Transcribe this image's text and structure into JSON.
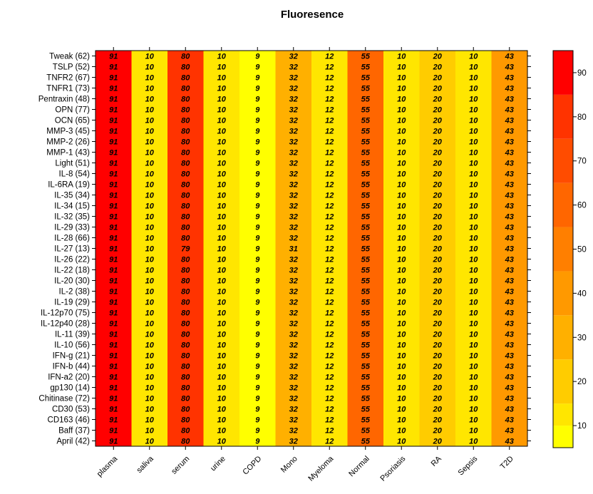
{
  "chart_data": {
    "type": "heatmap",
    "title": "Fluoresence",
    "xlabel": "",
    "ylabel": "",
    "columns": [
      "plasma",
      "saliva",
      "serum",
      "urine",
      "COPD",
      "Mono",
      "Myeloma",
      "Normal",
      "Psoriasis",
      "RA",
      "Sepsis",
      "T2D"
    ],
    "rows": [
      "Tweak (62)",
      "TSLP (52)",
      "TNFR2 (67)",
      "TNFR1 (73)",
      "Pentraxin (48)",
      "OPN (77)",
      "OCN (65)",
      "MMP-3 (45)",
      "MMP-2 (26)",
      "MMP-1 (43)",
      "Light (51)",
      "IL-8 (54)",
      "IL-6RA (19)",
      "IL-35 (34)",
      "IL-34 (15)",
      "IL-32 (35)",
      "IL-29 (33)",
      "IL-28 (66)",
      "IL-27 (13)",
      "IL-26 (22)",
      "IL-22 (18)",
      "IL-20 (30)",
      "IL-2 (38)",
      "IL-19 (29)",
      "IL-12p70 (75)",
      "IL-12p40 (28)",
      "IL-11 (39)",
      "IL-10 (56)",
      "IFN-g (21)",
      "IFN-b (44)",
      "IFN-a2 (20)",
      "gp130 (14)",
      "Chitinase (72)",
      "CD30 (53)",
      "CD163 (46)",
      "Baff (37)",
      "April (42)"
    ],
    "values": [
      [
        91,
        10,
        80,
        10,
        9,
        32,
        12,
        55,
        10,
        20,
        10,
        43
      ],
      [
        91,
        10,
        80,
        10,
        9,
        32,
        12,
        55,
        10,
        20,
        10,
        43
      ],
      [
        91,
        10,
        80,
        10,
        9,
        32,
        12,
        55,
        10,
        20,
        10,
        43
      ],
      [
        91,
        10,
        80,
        10,
        9,
        32,
        12,
        55,
        10,
        20,
        10,
        43
      ],
      [
        91,
        10,
        80,
        10,
        9,
        32,
        12,
        55,
        10,
        20,
        10,
        43
      ],
      [
        91,
        10,
        80,
        10,
        9,
        32,
        12,
        55,
        10,
        20,
        10,
        43
      ],
      [
        91,
        10,
        80,
        10,
        9,
        32,
        12,
        55,
        10,
        20,
        10,
        43
      ],
      [
        91,
        10,
        80,
        10,
        9,
        32,
        12,
        55,
        10,
        20,
        10,
        43
      ],
      [
        91,
        10,
        80,
        10,
        9,
        32,
        12,
        55,
        10,
        20,
        10,
        43
      ],
      [
        91,
        10,
        80,
        10,
        9,
        32,
        12,
        55,
        10,
        20,
        10,
        43
      ],
      [
        91,
        10,
        80,
        10,
        9,
        32,
        12,
        55,
        10,
        20,
        10,
        43
      ],
      [
        91,
        10,
        80,
        10,
        9,
        32,
        12,
        55,
        10,
        20,
        10,
        43
      ],
      [
        91,
        10,
        80,
        10,
        9,
        32,
        12,
        55,
        10,
        20,
        10,
        43
      ],
      [
        91,
        10,
        80,
        10,
        9,
        32,
        12,
        55,
        10,
        20,
        10,
        43
      ],
      [
        91,
        10,
        80,
        10,
        9,
        32,
        12,
        55,
        10,
        20,
        10,
        43
      ],
      [
        91,
        10,
        80,
        10,
        9,
        32,
        12,
        55,
        10,
        20,
        10,
        43
      ],
      [
        91,
        10,
        80,
        10,
        9,
        32,
        12,
        55,
        10,
        20,
        10,
        43
      ],
      [
        91,
        10,
        80,
        10,
        9,
        32,
        12,
        55,
        10,
        20,
        10,
        43
      ],
      [
        91,
        10,
        79,
        10,
        9,
        31,
        12,
        55,
        10,
        20,
        10,
        43
      ],
      [
        91,
        10,
        80,
        10,
        9,
        32,
        12,
        55,
        10,
        20,
        10,
        43
      ],
      [
        91,
        10,
        80,
        10,
        9,
        32,
        12,
        55,
        10,
        20,
        10,
        43
      ],
      [
        91,
        10,
        80,
        10,
        9,
        32,
        12,
        55,
        10,
        20,
        10,
        43
      ],
      [
        91,
        10,
        80,
        10,
        9,
        32,
        12,
        55,
        10,
        20,
        10,
        43
      ],
      [
        91,
        10,
        80,
        10,
        9,
        32,
        12,
        55,
        10,
        20,
        10,
        43
      ],
      [
        91,
        10,
        80,
        10,
        9,
        32,
        12,
        55,
        10,
        20,
        10,
        43
      ],
      [
        91,
        10,
        80,
        10,
        9,
        32,
        12,
        55,
        10,
        20,
        10,
        43
      ],
      [
        91,
        10,
        80,
        10,
        9,
        32,
        12,
        55,
        10,
        20,
        10,
        43
      ],
      [
        91,
        10,
        80,
        10,
        9,
        32,
        12,
        55,
        10,
        20,
        10,
        43
      ],
      [
        91,
        10,
        80,
        10,
        9,
        32,
        12,
        55,
        10,
        20,
        10,
        43
      ],
      [
        91,
        10,
        80,
        10,
        9,
        32,
        12,
        55,
        10,
        20,
        10,
        43
      ],
      [
        91,
        10,
        80,
        10,
        9,
        32,
        12,
        55,
        10,
        20,
        10,
        43
      ],
      [
        91,
        10,
        80,
        10,
        9,
        32,
        12,
        55,
        10,
        20,
        10,
        43
      ],
      [
        91,
        10,
        80,
        10,
        9,
        32,
        12,
        55,
        10,
        20,
        10,
        43
      ],
      [
        91,
        10,
        80,
        10,
        9,
        32,
        12,
        55,
        10,
        20,
        10,
        43
      ],
      [
        91,
        10,
        80,
        10,
        9,
        32,
        12,
        55,
        10,
        20,
        10,
        43
      ],
      [
        91,
        10,
        80,
        10,
        9,
        32,
        12,
        55,
        10,
        20,
        10,
        43
      ],
      [
        91,
        10,
        80,
        10,
        9,
        32,
        12,
        55,
        10,
        20,
        10,
        43
      ]
    ],
    "colorbar": {
      "range": [
        5,
        95
      ],
      "ticks": [
        10,
        20,
        30,
        40,
        50,
        60,
        70,
        80,
        90
      ],
      "bins": [
        {
          "from": 0,
          "to": 10,
          "color": "#ffff00"
        },
        {
          "from": 10,
          "to": 15,
          "color": "#ffe600"
        },
        {
          "from": 15,
          "to": 25,
          "color": "#ffcc00"
        },
        {
          "from": 25,
          "to": 35,
          "color": "#ffb000"
        },
        {
          "from": 35,
          "to": 45,
          "color": "#ff9900"
        },
        {
          "from": 45,
          "to": 55,
          "color": "#ff7f00"
        },
        {
          "from": 55,
          "to": 65,
          "color": "#ff6600"
        },
        {
          "from": 65,
          "to": 75,
          "color": "#ff4c00"
        },
        {
          "from": 75,
          "to": 85,
          "color": "#ff3300"
        },
        {
          "from": 85,
          "to": 100,
          "color": "#ff0000"
        }
      ]
    },
    "grid": false,
    "legend": "right"
  }
}
